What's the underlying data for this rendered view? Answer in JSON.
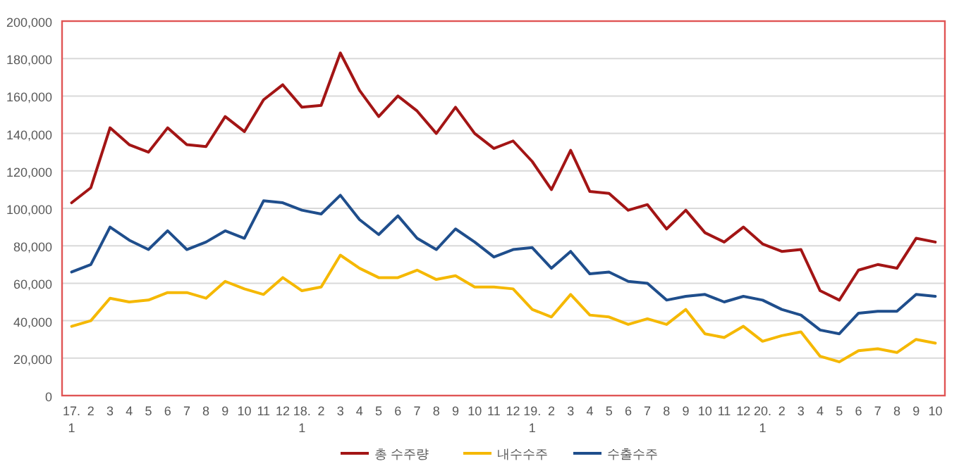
{
  "chart_data": {
    "type": "line",
    "categories": [
      "17.\n1",
      "2",
      "3",
      "4",
      "5",
      "6",
      "7",
      "8",
      "9",
      "10",
      "11",
      "12",
      "18.\n1",
      "2",
      "3",
      "4",
      "5",
      "6",
      "7",
      "8",
      "9",
      "10",
      "11",
      "12",
      "19.\n1",
      "2",
      "3",
      "4",
      "5",
      "6",
      "7",
      "8",
      "9",
      "10",
      "11",
      "12",
      "20.\n1",
      "2",
      "3",
      "4",
      "5",
      "6",
      "7",
      "8",
      "9",
      "10"
    ],
    "series": [
      {
        "name": "총 수주량",
        "color": "#a31515",
        "values": [
          103000,
          111000,
          143000,
          134000,
          130000,
          143000,
          134000,
          133000,
          149000,
          141000,
          158000,
          166000,
          154000,
          155000,
          183000,
          163000,
          149000,
          160000,
          152000,
          140000,
          154000,
          140000,
          132000,
          136000,
          125000,
          110000,
          131000,
          109000,
          108000,
          99000,
          102000,
          89000,
          99000,
          87000,
          82000,
          90000,
          81000,
          77000,
          78000,
          56000,
          51000,
          67000,
          70000,
          68000,
          84000,
          82000
        ]
      },
      {
        "name": "내수수주",
        "color": "#f5b800",
        "values": [
          37000,
          40000,
          52000,
          50000,
          51000,
          55000,
          55000,
          52000,
          61000,
          57000,
          54000,
          63000,
          56000,
          58000,
          75000,
          68000,
          63000,
          63000,
          67000,
          62000,
          64000,
          58000,
          58000,
          57000,
          46000,
          42000,
          54000,
          43000,
          42000,
          38000,
          41000,
          38000,
          46000,
          33000,
          31000,
          37000,
          29000,
          32000,
          34000,
          21000,
          18000,
          24000,
          25000,
          23000,
          30000,
          28000
        ]
      },
      {
        "name": "수출수주",
        "color": "#1f4e8c",
        "values": [
          66000,
          70000,
          90000,
          83000,
          78000,
          88000,
          78000,
          82000,
          88000,
          84000,
          104000,
          103000,
          99000,
          97000,
          107000,
          94000,
          86000,
          96000,
          84000,
          78000,
          89000,
          82000,
          74000,
          78000,
          79000,
          68000,
          77000,
          65000,
          66000,
          61000,
          60000,
          51000,
          53000,
          54000,
          50000,
          53000,
          51000,
          46000,
          43000,
          35000,
          33000,
          44000,
          45000,
          45000,
          54000,
          53000
        ]
      }
    ],
    "ylim": [
      0,
      200000
    ],
    "yticks": [
      0,
      {
        "value": 20000,
        "label": "20,000"
      },
      {
        "value": 40000,
        "label": "40,000"
      },
      {
        "value": 60000,
        "label": "60,000"
      },
      {
        "value": 80000,
        "label": "80,000"
      },
      {
        "value": 100000,
        "label": "100,000"
      },
      {
        "value": 120000,
        "label": "120,000"
      },
      {
        "value": 140000,
        "label": "140,000"
      },
      {
        "value": 160000,
        "label": "160,000"
      },
      {
        "value": 180000,
        "label": "180,000"
      },
      {
        "value": 200000,
        "label": "200,000"
      }
    ],
    "grid": "y",
    "legend": "bottom",
    "marker": "none",
    "line_style": "solid"
  }
}
